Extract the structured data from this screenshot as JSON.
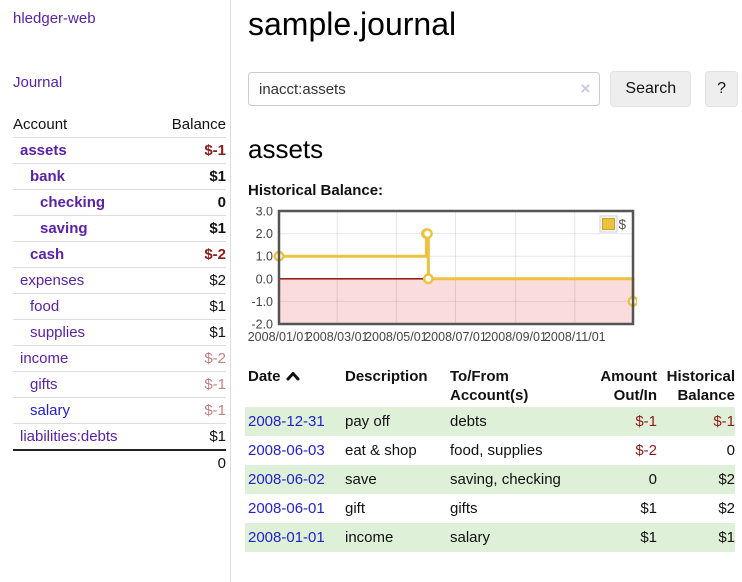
{
  "app": {
    "title": "hledger-web"
  },
  "colors": {
    "accent_purple": "#5b21a6",
    "link_blue": "#2222cc",
    "negative": "#8f1a1a",
    "negative_dim": "#c48282",
    "row_stripe_green": "#dff0d8",
    "chart_line_gold": "#edc240"
  },
  "sidebar": {
    "journal_link": "Journal",
    "table": {
      "headers": [
        "Account",
        "Balance"
      ],
      "rows": [
        {
          "account": "assets",
          "level": 1,
          "bold": true,
          "link_color": "purple",
          "balance": "$-1",
          "balance_class": "negative"
        },
        {
          "account": "bank",
          "level": 2,
          "bold": true,
          "link_color": "purple",
          "balance": "$1",
          "balance_class": "normal"
        },
        {
          "account": "checking",
          "level": 3,
          "bold": true,
          "link_color": "purple",
          "balance": "0",
          "balance_class": "normal"
        },
        {
          "account": "saving",
          "level": 3,
          "bold": true,
          "link_color": "purple",
          "balance": "$1",
          "balance_class": "normal"
        },
        {
          "account": "cash",
          "level": 2,
          "bold": true,
          "link_color": "purple",
          "balance": "$-2",
          "balance_class": "negative"
        },
        {
          "account": "expenses",
          "level": 1,
          "bold": false,
          "link_color": "purple",
          "balance": "$2",
          "balance_class": "normal"
        },
        {
          "account": "food",
          "level": 2,
          "bold": false,
          "link_color": "purple",
          "balance": "$1",
          "balance_class": "normal"
        },
        {
          "account": "supplies",
          "level": 2,
          "bold": false,
          "link_color": "purple",
          "balance": "$1",
          "balance_class": "normal"
        },
        {
          "account": "income",
          "level": 1,
          "bold": false,
          "link_color": "purple",
          "balance": "$-2",
          "balance_class": "negative-dim"
        },
        {
          "account": "gifts",
          "level": 2,
          "bold": false,
          "link_color": "purple",
          "balance": "$-1",
          "balance_class": "negative-dim"
        },
        {
          "account": "salary",
          "level": 2,
          "bold": false,
          "link_color": "blue",
          "balance": "$-1",
          "balance_class": "negative-dim"
        },
        {
          "account": "liabilities:debts",
          "level": 1,
          "bold": false,
          "link_color": "purple",
          "balance": "$1",
          "balance_class": "normal"
        }
      ],
      "total": "0"
    }
  },
  "main": {
    "title": "sample.journal",
    "search": {
      "value": "inacct:assets",
      "clear_icon": "×",
      "button_label": "Search",
      "help_label": "?"
    },
    "account_heading": "assets",
    "chart_title": "Historical Balance:",
    "chart_data": {
      "type": "line",
      "step": true,
      "x_min": "2008-01-01",
      "x_max": "2008-12-31",
      "ylim": [
        -2,
        3
      ],
      "y_ticks": [
        3.0,
        2.0,
        1.0,
        0.0,
        -1.0,
        -2.0
      ],
      "x_ticks": [
        "2008/01/01",
        "2008/03/01",
        "2008/05/01",
        "2008/07/01",
        "2008/09/01",
        "2008/11/01"
      ],
      "series": [
        {
          "name": "$",
          "color": "#edc240",
          "points": [
            [
              "2008-01-01",
              1
            ],
            [
              "2008-06-01",
              2
            ],
            [
              "2008-06-02",
              2
            ],
            [
              "2008-06-03",
              0
            ],
            [
              "2008-12-31",
              -1
            ]
          ]
        }
      ],
      "grid": true,
      "legend_position": "top-right",
      "negative_fill": "#fbdcdc",
      "zero_line_color": "#8b0000",
      "border_color": "#545454"
    },
    "register": {
      "headers": [
        "Date",
        "Description",
        "To/From Account(s)",
        "Amount Out/In",
        "Historical Balance"
      ],
      "rows": [
        {
          "date": "2008-12-31",
          "description": "pay off",
          "accounts": "debts",
          "amount": "$-1",
          "amount_class": "negative",
          "balance": "$-1",
          "balance_class": "negative",
          "striped": true
        },
        {
          "date": "2008-06-03",
          "description": "eat & shop",
          "accounts": "food, supplies",
          "amount": "$-2",
          "amount_class": "negative",
          "balance": "0",
          "balance_class": "normal",
          "striped": false
        },
        {
          "date": "2008-06-02",
          "description": "save",
          "accounts": "saving, checking",
          "amount": "0",
          "amount_class": "normal",
          "balance": "$2",
          "balance_class": "normal",
          "striped": true
        },
        {
          "date": "2008-06-01",
          "description": "gift",
          "accounts": "gifts",
          "amount": "$1",
          "amount_class": "normal",
          "balance": "$2",
          "balance_class": "normal",
          "striped": false
        },
        {
          "date": "2008-01-01",
          "description": "income",
          "accounts": "salary",
          "amount": "$1",
          "amount_class": "normal",
          "balance": "$1",
          "balance_class": "normal",
          "striped": true
        }
      ]
    }
  }
}
